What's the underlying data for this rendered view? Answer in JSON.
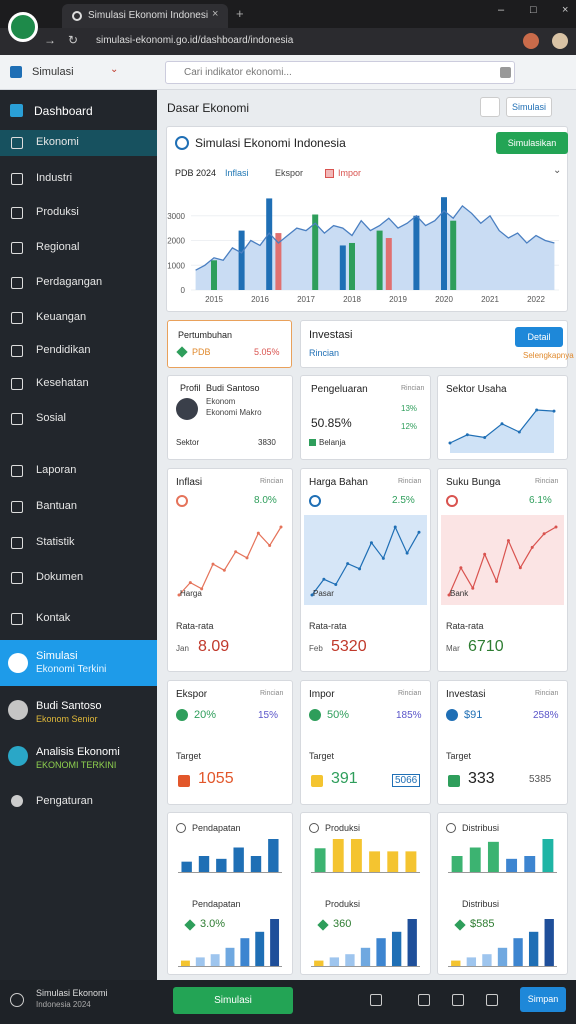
{
  "browser": {
    "tab_title": "Simulasi Ekonomi Indonesia",
    "url": "simulasi-ekonomi.go.id/dashboard/indonesia"
  },
  "toolbar": {
    "brand": "Simulasi",
    "search": "Cari indikator ekonomi..."
  },
  "sidebar": {
    "title": "Dashboard",
    "items": [
      "Ekonomi",
      "Industri",
      "Produksi",
      "Regional",
      "Perdagangan",
      "Keuangan",
      "Pendidikan",
      "Kesehatan",
      "Sosial",
      "Laporan",
      "Bantuan",
      "Statistik",
      "Dokumen",
      "Kontak"
    ],
    "highlight": {
      "title": "Simulasi",
      "subtitle": "Ekonomi Terkini"
    },
    "users": [
      {
        "name": "Budi Santoso",
        "role": "Ekonom Senior"
      },
      {
        "name": "Analisis Ekonomi",
        "role": "EKONOMI TERKINI"
      }
    ],
    "footer_item": "Pengaturan"
  },
  "header": {
    "title": "Dasar Ekonomi",
    "button": "Simulasi"
  },
  "main_chart": {
    "title": "Simulasi Ekonomi Indonesia",
    "button": "Simulasikan",
    "legend": [
      {
        "name": "PDB 2024",
        "color": "#222222"
      },
      {
        "name": "Inflasi",
        "color": "#1f77b4"
      },
      {
        "name": "Ekspor",
        "color": "#444444"
      },
      {
        "name": "Impor",
        "color": "#d9534f"
      }
    ],
    "ylim": [
      0,
      4000
    ],
    "yticks": [
      0,
      1000,
      2000,
      3000
    ],
    "x_labels": [
      "2015",
      "2016",
      "2017",
      "2018",
      "2019",
      "2020",
      "2021",
      "2022"
    ],
    "line": {
      "color": "#4a7fc1",
      "values": [
        800,
        1000,
        1300,
        1200,
        1700,
        1500,
        2000,
        1800,
        2300,
        1900,
        2200,
        2500,
        2400,
        2700,
        2300,
        2600,
        2500,
        2200,
        2800,
        2400,
        2600,
        2900,
        2500,
        2700,
        3000,
        2600,
        2800,
        3200,
        2900,
        3400,
        3100,
        2700,
        3000,
        2400,
        2100,
        2300,
        1900,
        2200,
        2000,
        1900
      ]
    },
    "bars": [
      {
        "color": "#1f6fb5",
        "values": [
          null,
          null,
          null,
          null,
          null,
          2400,
          null,
          null,
          3700,
          null,
          null,
          null,
          null,
          null,
          null,
          null,
          1800,
          null,
          null,
          null,
          null,
          null,
          null,
          null,
          3000,
          null,
          null,
          3750,
          null,
          null,
          null,
          null,
          null,
          null,
          null,
          null,
          null,
          null,
          null,
          null
        ]
      },
      {
        "color": "#2e9e5b",
        "values": [
          null,
          null,
          1200,
          null,
          null,
          null,
          null,
          null,
          null,
          null,
          null,
          null,
          null,
          3050,
          null,
          null,
          null,
          1900,
          null,
          null,
          2400,
          null,
          null,
          null,
          null,
          null,
          null,
          null,
          2800,
          null,
          null,
          null,
          null,
          null,
          null,
          null,
          null,
          null,
          null,
          null
        ]
      },
      {
        "color": "#e07070",
        "values": [
          null,
          null,
          null,
          null,
          null,
          null,
          null,
          null,
          null,
          2300,
          null,
          null,
          null,
          null,
          null,
          null,
          null,
          null,
          null,
          null,
          null,
          2100,
          null,
          null,
          null,
          null,
          null,
          null,
          null,
          null,
          null,
          null,
          null,
          null,
          null,
          null,
          null,
          null,
          null,
          null
        ]
      }
    ]
  },
  "growth": {
    "title": "Pertumbuhan",
    "label": "PDB",
    "value": "5.05%"
  },
  "investment": {
    "title": "Investasi",
    "subtitle": "Rincian",
    "button": "Detail",
    "link": "Selengkapnya"
  },
  "profile": {
    "label": "Profil",
    "name": "Budi Santoso",
    "role": "Ekonom",
    "detail": "Ekonomi Makro",
    "foot_left": "Sektor",
    "foot_right": "3830"
  },
  "spending": {
    "title": "Pengeluaran",
    "tag": "Rincian",
    "value": "50.85%",
    "rate1": "13%",
    "rate2": "12%",
    "legend": "Belanja"
  },
  "sector": {
    "title": "Sektor Usaha",
    "line": [
      20,
      35,
      30,
      55,
      40,
      80,
      78
    ]
  },
  "indicators": [
    {
      "title": "Inflasi",
      "tag": "Rincian",
      "stat": "8.0%",
      "chart_label": "Harga",
      "foot_title": "Rata-rata",
      "foot_label": "Jan",
      "value": "8.09",
      "color": "#e5735a",
      "bg": "#ffffff",
      "value_color": "#c0392b",
      "line": [
        20,
        30,
        25,
        45,
        40,
        55,
        50,
        70,
        60,
        75
      ]
    },
    {
      "title": "Harga Bahan",
      "tag": "Rincian",
      "stat": "2.5%",
      "chart_label": "Pasar",
      "foot_title": "Rata-rata",
      "foot_label": "Feb",
      "value": "5320",
      "color": "#1f6fb5",
      "bg": "#d6e6f7",
      "value_color": "#c0392b",
      "line": [
        20,
        35,
        30,
        50,
        45,
        70,
        55,
        85,
        60,
        80
      ]
    },
    {
      "title": "Suku Bunga",
      "tag": "Rincian",
      "stat": "6.1%",
      "chart_label": "Bank",
      "foot_title": "Rata-rata",
      "foot_label": "Mar",
      "value": "6710",
      "color": "#d9534f",
      "bg": "#fbe4e4",
      "value_color": "#2e7d32",
      "line": [
        40,
        60,
        45,
        70,
        50,
        80,
        60,
        75,
        85,
        90
      ]
    }
  ],
  "stats": [
    {
      "title": "Ekspor",
      "tag": "Rincian",
      "stat": "20%",
      "change": "15%",
      "foot_title": "Target",
      "value": "1055",
      "extra": ""
    },
    {
      "title": "Impor",
      "tag": "Rincian",
      "stat": "50%",
      "change": "185%",
      "foot_title": "Target",
      "value": "391",
      "extra": "5066"
    },
    {
      "title": "Investasi",
      "tag": "Rincian",
      "stat": "$91",
      "change": "258%",
      "foot_title": "Target",
      "value": "333",
      "extra": "5385"
    }
  ],
  "bar_cards": [
    {
      "title": "Pendapatan",
      "foot_title": "Pendapatan",
      "stat": "3.0%",
      "bars": [
        20,
        30,
        25,
        45,
        30,
        60
      ],
      "colors": [
        "#1f6fb5",
        "#1f6fb5",
        "#1f6fb5",
        "#1f6fb5",
        "#1f6fb5",
        "#1f6fb5"
      ],
      "bars2": [
        10,
        15,
        20,
        30,
        45,
        55,
        75
      ],
      "colors2": [
        "#f4c430",
        "#9ec5ee",
        "#9ec5ee",
        "#6fa8e0",
        "#3d85d0",
        "#1f6fb5",
        "#1f4f9a"
      ]
    },
    {
      "title": "Produksi",
      "foot_title": "Produksi",
      "stat": "360",
      "bars": [
        40,
        55,
        55,
        35,
        35,
        35
      ],
      "colors": [
        "#3cb371",
        "#f4c430",
        "#f4c430",
        "#f4c430",
        "#f4c430",
        "#f4c430"
      ],
      "bars2": [
        10,
        15,
        20,
        30,
        45,
        55,
        75
      ],
      "colors2": [
        "#f4c430",
        "#9ec5ee",
        "#9ec5ee",
        "#6fa8e0",
        "#3d85d0",
        "#1f6fb5",
        "#1f4f9a"
      ]
    },
    {
      "title": "Distribusi",
      "foot_title": "Distribusi",
      "stat": "$585",
      "bars": [
        30,
        45,
        55,
        25,
        30,
        60
      ],
      "colors": [
        "#3cb371",
        "#3cb371",
        "#3cb371",
        "#3d85d0",
        "#3d85d0",
        "#1fb5a5"
      ],
      "bars2": [
        10,
        15,
        20,
        30,
        45,
        55,
        75
      ],
      "colors2": [
        "#f4c430",
        "#9ec5ee",
        "#9ec5ee",
        "#6fa8e0",
        "#3d85d0",
        "#1f6fb5",
        "#1f4f9a"
      ]
    }
  ],
  "bottom": {
    "title": "Simulasi Ekonomi",
    "subtitle": "Indonesia 2024",
    "start": "Simulasi",
    "save": "Simpan"
  }
}
